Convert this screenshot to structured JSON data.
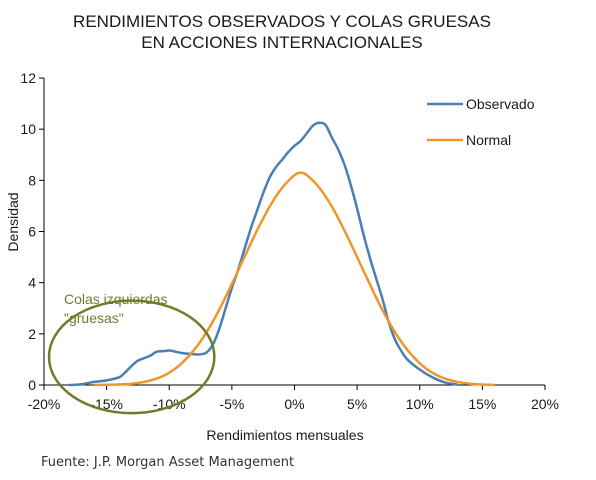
{
  "chart_data": {
    "type": "line",
    "title_lines": [
      "RENDIMIENTOS OBSERVADOS Y COLAS GRUESAS",
      "EN ACCIONES INTERNACIONALES"
    ],
    "xlabel": "Rendimientos mensuales",
    "ylabel": "Densidad",
    "xlim": [
      -20,
      20
    ],
    "ylim": [
      0,
      12
    ],
    "x_ticks": [
      -20,
      -15,
      -10,
      -5,
      0,
      5,
      10,
      15,
      20
    ],
    "x_tick_labels": [
      "-20%",
      "-15%",
      "-10%",
      "-5%",
      "0%",
      "5%",
      "10%",
      "15%",
      "20%"
    ],
    "y_ticks": [
      0,
      2,
      4,
      6,
      8,
      10,
      12
    ],
    "y_tick_labels": [
      "0",
      "2",
      "4",
      "6",
      "8",
      "10",
      "12"
    ],
    "grid": false,
    "legend_position": "top-right",
    "series": [
      {
        "name": "Observado",
        "color": "#4a7fb5",
        "points": [
          [
            -18,
            0.0
          ],
          [
            -17,
            0.03
          ],
          [
            -16,
            0.12
          ],
          [
            -15,
            0.18
          ],
          [
            -14,
            0.3
          ],
          [
            -13.5,
            0.5
          ],
          [
            -13,
            0.75
          ],
          [
            -12.5,
            0.95
          ],
          [
            -12,
            1.05
          ],
          [
            -11.5,
            1.15
          ],
          [
            -11,
            1.3
          ],
          [
            -10.5,
            1.32
          ],
          [
            -10,
            1.35
          ],
          [
            -9.5,
            1.3
          ],
          [
            -9,
            1.25
          ],
          [
            -8.5,
            1.22
          ],
          [
            -8,
            1.2
          ],
          [
            -7.5,
            1.2
          ],
          [
            -7,
            1.28
          ],
          [
            -6.5,
            1.6
          ],
          [
            -6,
            2.2
          ],
          [
            -5.5,
            3.0
          ],
          [
            -5,
            3.8
          ],
          [
            -4.5,
            4.5
          ],
          [
            -4,
            5.3
          ],
          [
            -3.5,
            6.1
          ],
          [
            -3,
            6.8
          ],
          [
            -2.5,
            7.5
          ],
          [
            -2,
            8.1
          ],
          [
            -1.5,
            8.5
          ],
          [
            -1,
            8.8
          ],
          [
            -0.5,
            9.1
          ],
          [
            0,
            9.35
          ],
          [
            0.5,
            9.55
          ],
          [
            1,
            9.85
          ],
          [
            1.5,
            10.15
          ],
          [
            2,
            10.25
          ],
          [
            2.5,
            10.15
          ],
          [
            3,
            9.65
          ],
          [
            3.5,
            9.2
          ],
          [
            4,
            8.6
          ],
          [
            4.5,
            7.8
          ],
          [
            5,
            6.9
          ],
          [
            5.5,
            5.9
          ],
          [
            6,
            5.0
          ],
          [
            6.5,
            4.2
          ],
          [
            7,
            3.4
          ],
          [
            7.5,
            2.5
          ],
          [
            8,
            1.8
          ],
          [
            8.5,
            1.35
          ],
          [
            9,
            1.0
          ],
          [
            10,
            0.6
          ],
          [
            11,
            0.3
          ],
          [
            12,
            0.1
          ],
          [
            13,
            0.02
          ]
        ]
      },
      {
        "name": "Normal",
        "color": "#f0952a",
        "points": [
          [
            -16,
            0.0
          ],
          [
            -14,
            0.02
          ],
          [
            -13,
            0.05
          ],
          [
            -12,
            0.12
          ],
          [
            -11,
            0.25
          ],
          [
            -10,
            0.48
          ],
          [
            -9,
            0.85
          ],
          [
            -8,
            1.38
          ],
          [
            -7,
            2.08
          ],
          [
            -6,
            2.95
          ],
          [
            -5,
            3.95
          ],
          [
            -4,
            5.0
          ],
          [
            -3,
            6.03
          ],
          [
            -2,
            6.96
          ],
          [
            -1,
            7.7
          ],
          [
            0,
            8.2
          ],
          [
            0.5,
            8.3
          ],
          [
            1,
            8.2
          ],
          [
            2,
            7.7
          ],
          [
            3,
            6.96
          ],
          [
            4,
            6.03
          ],
          [
            5,
            5.0
          ],
          [
            6,
            3.95
          ],
          [
            7,
            2.95
          ],
          [
            8,
            2.08
          ],
          [
            9,
            1.38
          ],
          [
            10,
            0.85
          ],
          [
            11,
            0.48
          ],
          [
            12,
            0.25
          ],
          [
            13,
            0.12
          ],
          [
            14,
            0.05
          ],
          [
            15,
            0.02
          ],
          [
            16,
            0.0
          ]
        ]
      }
    ],
    "annotations": [
      {
        "text_lines": [
          "Colas izquierdas",
          "\"gruesas\""
        ],
        "color": "#6e7d2a",
        "ellipse": {
          "cx": -13,
          "cy": 1.1,
          "rx": 6.6,
          "ry": 2.2
        }
      }
    ]
  },
  "source": "Fuente: J.P. Morgan Asset Management"
}
